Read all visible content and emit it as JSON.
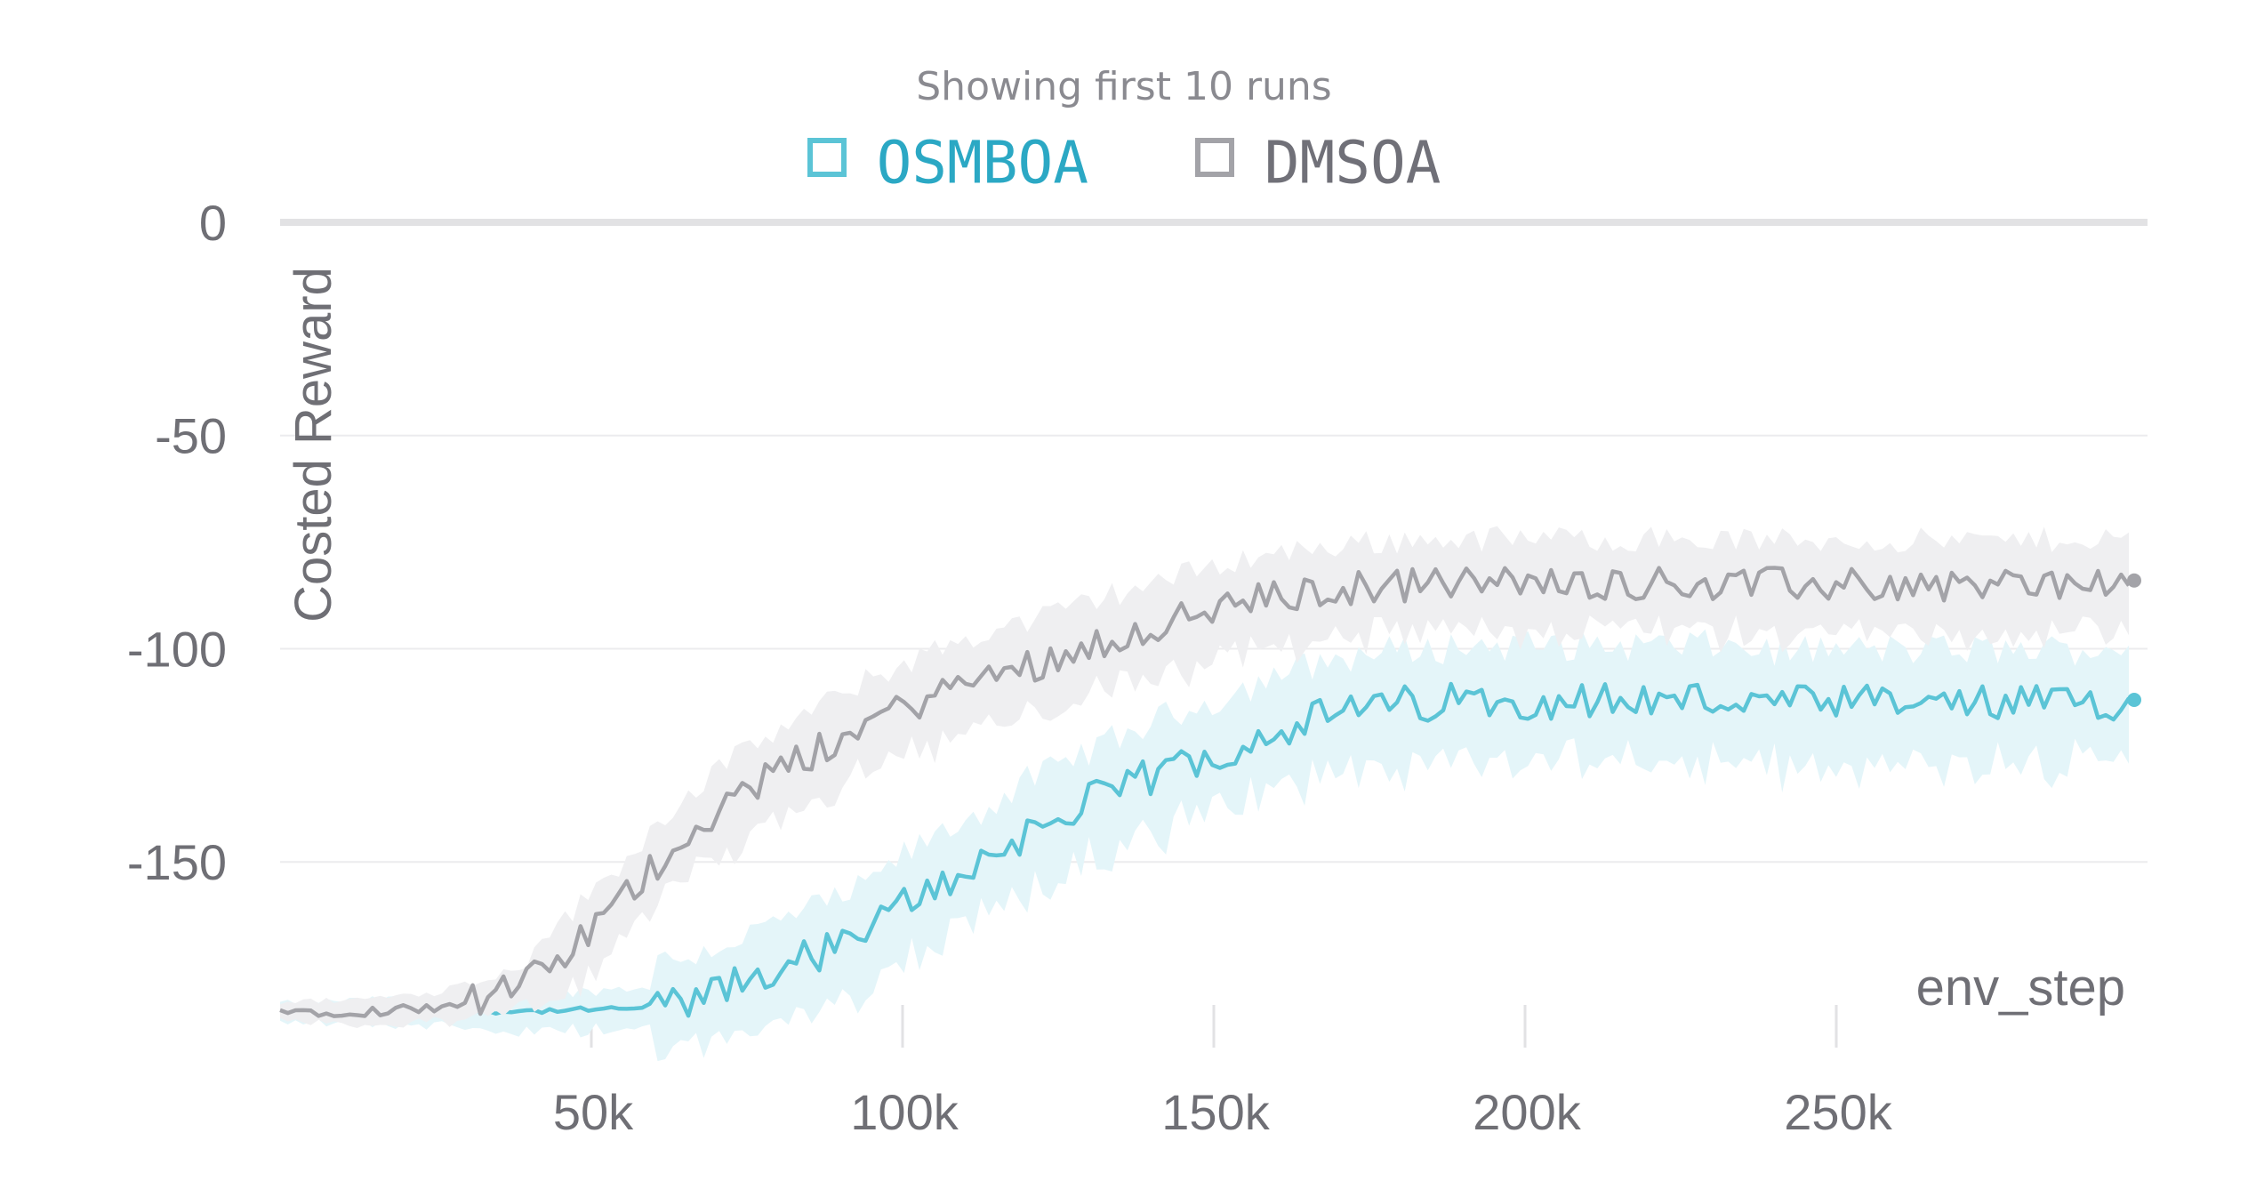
{
  "chart_data": {
    "type": "line",
    "legend_title": "Showing first 10 runs",
    "xlabel": "env_step",
    "ylabel": "Costed Reward",
    "xlim": [
      0,
      300000
    ],
    "ylim": [
      -185,
      0
    ],
    "x_ticks": [
      50000,
      100000,
      150000,
      200000,
      250000
    ],
    "x_tick_labels": [
      "50k",
      "100k",
      "150k",
      "200k",
      "250k"
    ],
    "y_ticks": [
      0,
      -50,
      -100,
      -150
    ],
    "y_tick_labels": [
      "0",
      "-50",
      "-100",
      "-150"
    ],
    "series": [
      {
        "name": "OSMBOA",
        "color": "#5bc4d6",
        "band_color": "#e4f5f9",
        "x": [
          0,
          20000,
          40000,
          55000,
          65000,
          70000,
          75000,
          80000,
          85000,
          90000,
          95000,
          100000,
          105000,
          110000,
          115000,
          120000,
          125000,
          130000,
          135000,
          140000,
          145000,
          150000,
          155000,
          160000,
          165000,
          170000,
          175000,
          180000,
          185000,
          190000,
          200000,
          210000,
          220000,
          230000,
          240000,
          250000,
          260000,
          270000,
          280000,
          290000,
          297000
        ],
        "y": [
          -185,
          -185,
          -185,
          -184.5,
          -183,
          -181,
          -178,
          -175,
          -172,
          -170,
          -166,
          -160,
          -156,
          -152,
          -148,
          -143,
          -140,
          -136,
          -133,
          -130,
          -127,
          -125,
          -122,
          -119,
          -117,
          -115,
          -114,
          -113,
          -113,
          -112,
          -112,
          -112,
          -112,
          -112,
          -113,
          -113,
          -113,
          -113,
          -113,
          -113,
          -112
        ]
      },
      {
        "name": "DMSOA",
        "color": "#a3a3a8",
        "band_color": "#efeff1",
        "x": [
          0,
          15000,
          25000,
          35000,
          40000,
          45000,
          50000,
          55000,
          60000,
          65000,
          70000,
          75000,
          80000,
          85000,
          90000,
          95000,
          100000,
          105000,
          110000,
          115000,
          120000,
          125000,
          130000,
          135000,
          140000,
          145000,
          150000,
          155000,
          160000,
          165000,
          170000,
          175000,
          180000,
          190000,
          200000,
          220000,
          240000,
          260000,
          280000,
          297000
        ],
        "y": [
          -185,
          -185,
          -184,
          -181,
          -178,
          -173,
          -166,
          -159,
          -151,
          -144,
          -138,
          -133,
          -129,
          -125,
          -121,
          -117,
          -114,
          -111,
          -108,
          -106,
          -104,
          -102,
          -99,
          -97,
          -95,
          -93,
          -91,
          -89,
          -88,
          -87,
          -86,
          -85.5,
          -85,
          -84.5,
          -84.5,
          -84.5,
          -85,
          -85,
          -85,
          -84
        ]
      }
    ]
  }
}
